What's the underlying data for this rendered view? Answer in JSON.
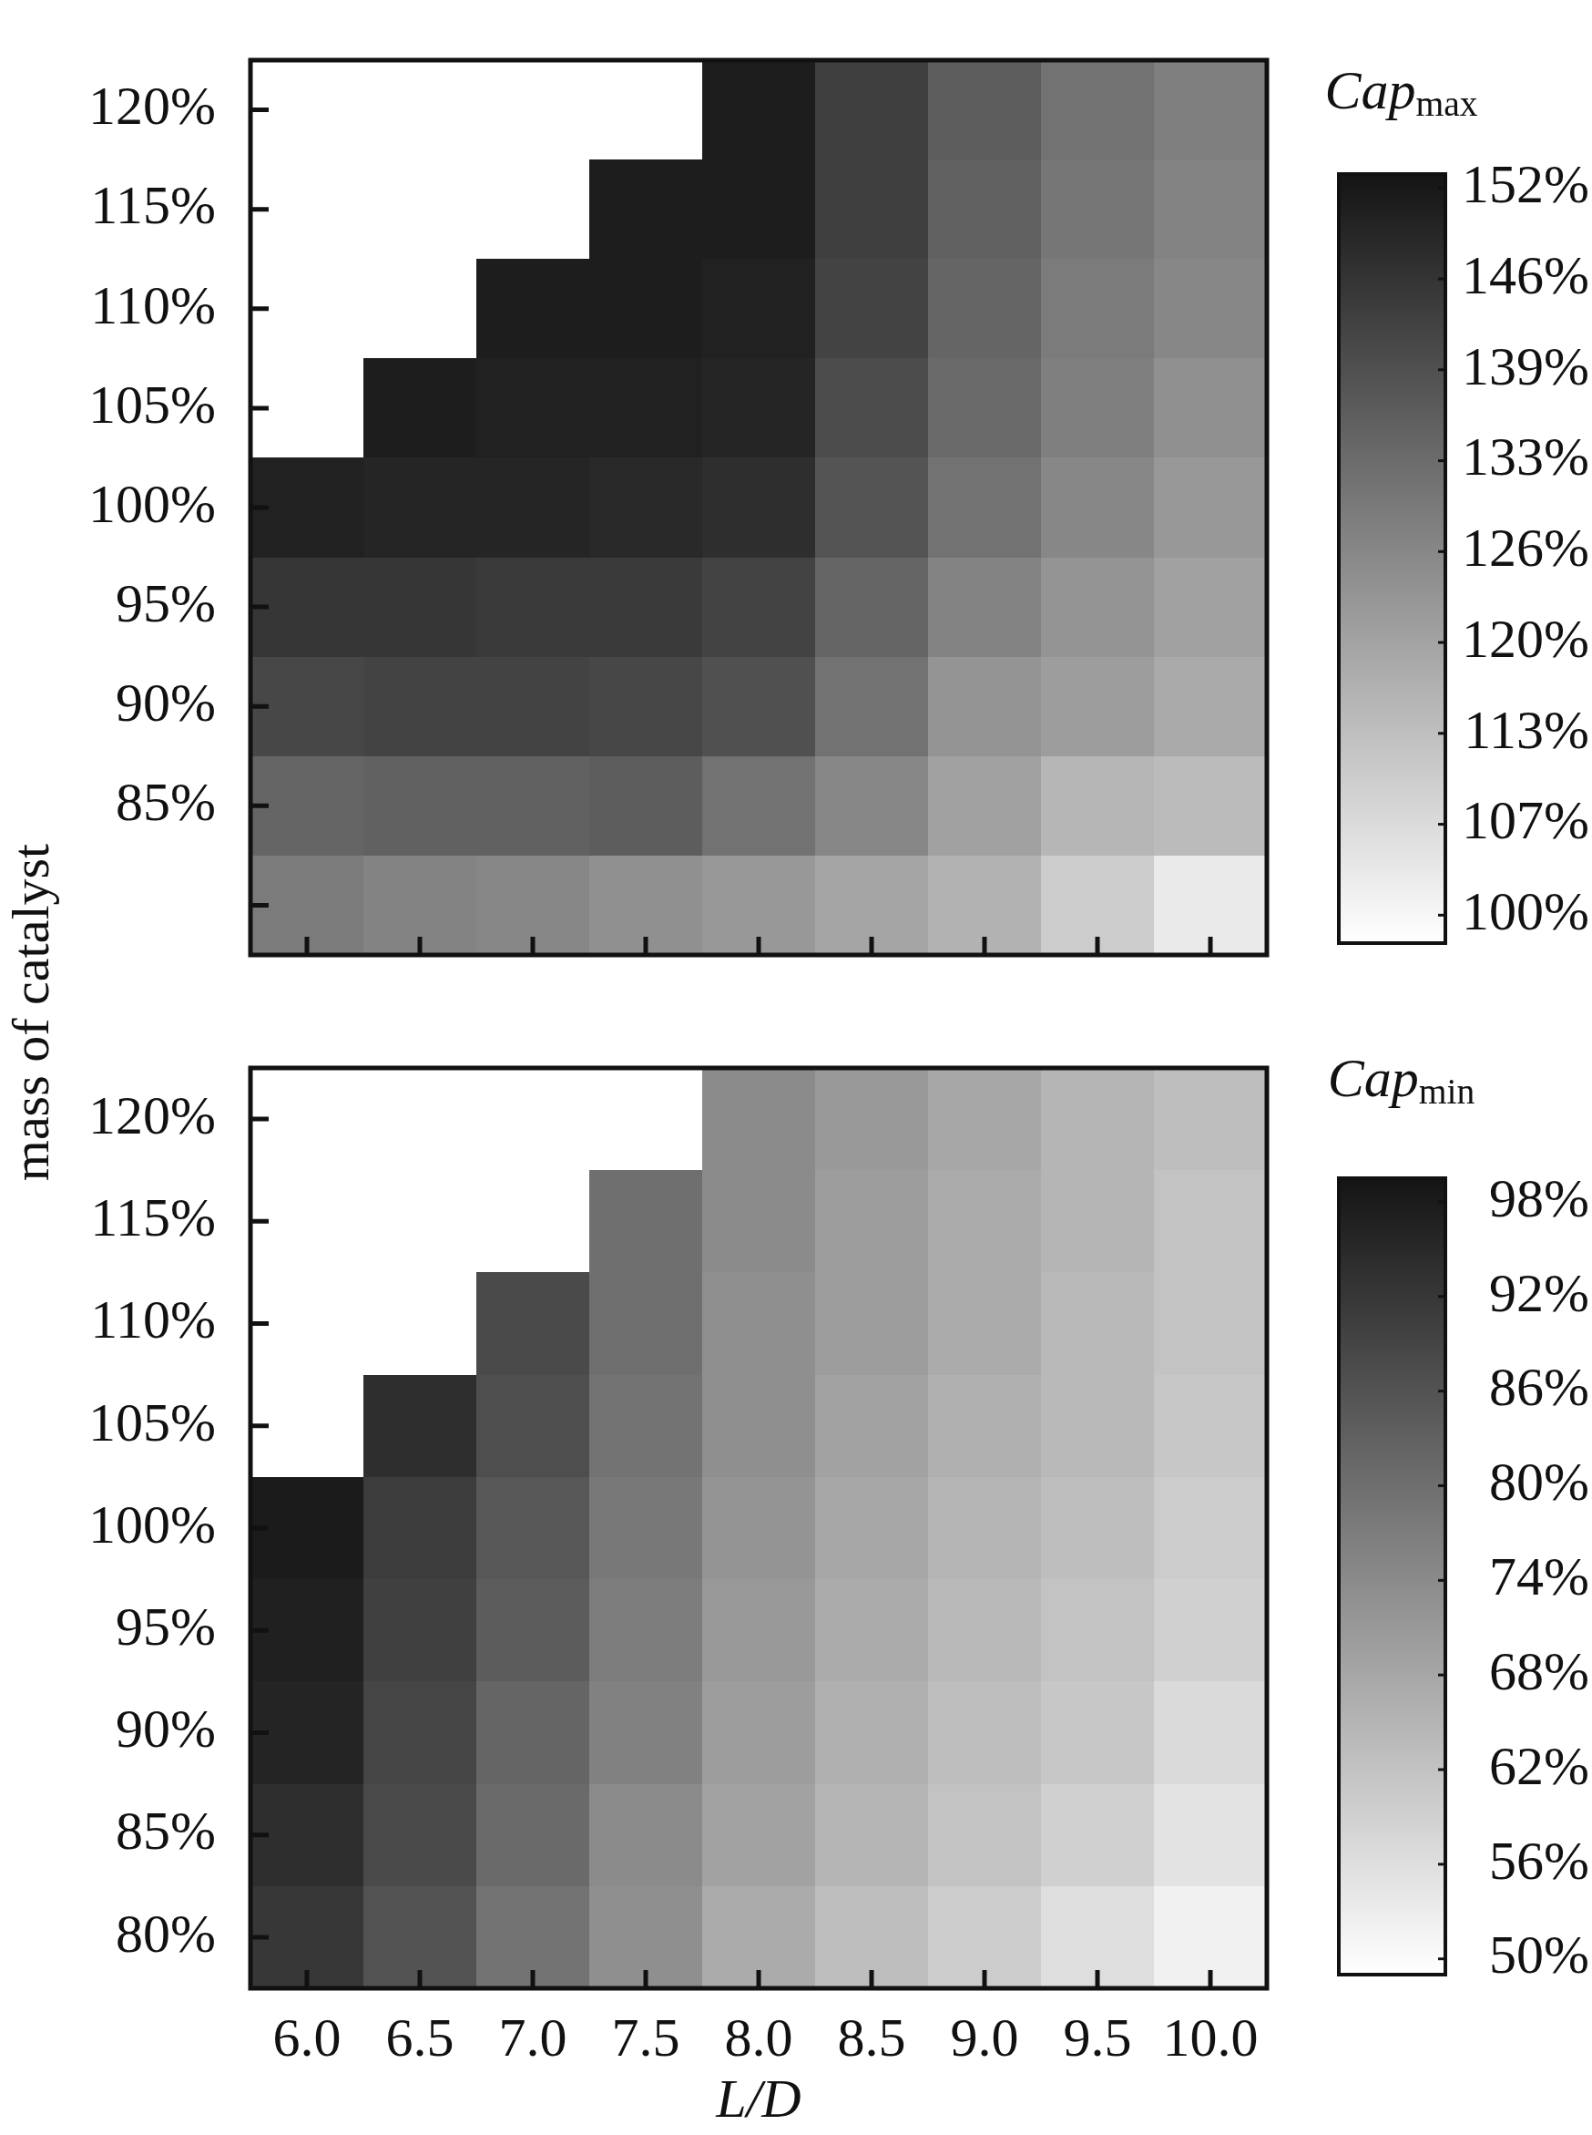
{
  "chart_data": [
    {
      "type": "heatmap",
      "ylabel": "mass of catalyst",
      "clabel": "Cap$_{max}$",
      "tick_labels": "y",
      "categories": [
        "6.0",
        "6.5",
        "7.0",
        "7.5",
        "8.0",
        "8.5",
        "9.0",
        "9.5",
        "10.0"
      ],
      "y_categories": [
        "120%",
        "115%",
        "110%",
        "105%",
        "100%",
        "95%",
        "90%",
        "85%",
        null
      ],
      "cells": [
        [
          null,
          null,
          null,
          null,
          151,
          143,
          136,
          131,
          128
        ],
        [
          null,
          null,
          null,
          151,
          151,
          143,
          135,
          130,
          127
        ],
        [
          null,
          null,
          151,
          151,
          150,
          142,
          134,
          129,
          126
        ],
        [
          null,
          151,
          150,
          150,
          149,
          140,
          133,
          128,
          124
        ],
        [
          150,
          149,
          149,
          148,
          147,
          138,
          131,
          126,
          122
        ],
        [
          145,
          145,
          144,
          144,
          142,
          134,
          127,
          123,
          120
        ],
        [
          141,
          142,
          142,
          141,
          139,
          131,
          123,
          121,
          118
        ],
        [
          134,
          135,
          135,
          136,
          131,
          126,
          120,
          115,
          114
        ],
        [
          129,
          127,
          126,
          124,
          122,
          119,
          116,
          110,
          103
        ]
      ],
      "clim": [
        98,
        153
      ],
      "cticks": [
        {
          "value": 100,
          "label": "100%"
        },
        {
          "value": 106.5,
          "label": "107%"
        },
        {
          "value": 113,
          "label": "113%"
        },
        {
          "value": 119.5,
          "label": "120%"
        },
        {
          "value": 126,
          "label": "126%"
        },
        {
          "value": 132.5,
          "label": "133%"
        },
        {
          "value": 139,
          "label": "139%"
        },
        {
          "value": 145.5,
          "label": "146%"
        },
        {
          "value": 152,
          "label": "152%"
        }
      ]
    },
    {
      "type": "heatmap",
      "xlabel": "L/D",
      "clabel": "Cap$_{min}$",
      "categories": [
        "6.0",
        "6.5",
        "7.0",
        "7.5",
        "8.0",
        "8.5",
        "9.0",
        "9.5",
        "10.0"
      ],
      "y_categories": [
        "120%",
        "115%",
        "110%",
        "105%",
        "100%",
        "95%",
        "90%",
        "85%",
        "80%"
      ],
      "cells": [
        [
          null,
          null,
          null,
          null,
          74,
          71,
          68,
          65,
          63
        ],
        [
          null,
          null,
          null,
          80,
          74,
          70,
          67,
          65,
          62
        ],
        [
          null,
          null,
          88,
          80,
          73,
          70,
          67,
          64,
          62
        ],
        [
          null,
          94,
          87,
          79,
          73,
          69,
          66,
          64,
          61
        ],
        [
          98,
          91,
          85,
          78,
          72,
          68,
          65,
          63,
          60
        ],
        [
          97,
          90,
          84,
          77,
          71,
          67,
          64,
          62,
          59
        ],
        [
          96,
          89,
          82,
          76,
          70,
          66,
          63,
          61,
          57
        ],
        [
          94,
          88,
          81,
          74,
          69,
          65,
          62,
          59,
          55
        ],
        [
          92,
          86,
          79,
          73,
          67,
          63,
          60,
          56,
          52
        ]
      ],
      "clim": [
        49,
        99.5
      ],
      "cticks": [
        {
          "value": 50,
          "label": "50%"
        },
        {
          "value": 56,
          "label": "56%"
        },
        {
          "value": 62,
          "label": "62%"
        },
        {
          "value": 68,
          "label": "68%"
        },
        {
          "value": 74,
          "label": "74%"
        },
        {
          "value": 80,
          "label": "80%"
        },
        {
          "value": 86,
          "label": "86%"
        },
        {
          "value": 92,
          "label": "92%"
        },
        {
          "value": 98,
          "label": "98%"
        }
      ]
    }
  ]
}
